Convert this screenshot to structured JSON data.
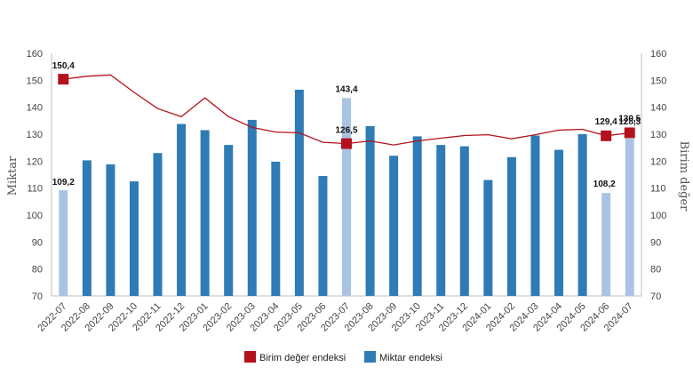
{
  "chart_data": {
    "type": "bar",
    "categories": [
      "2022-07",
      "2022-08",
      "2022-09",
      "2022-10",
      "2022-11",
      "2022-12",
      "2023-01",
      "2023-02",
      "2023-03",
      "2023-04",
      "2023-05",
      "2023-06",
      "2023-07",
      "2023-08",
      "2023-09",
      "2023-10",
      "2023-11",
      "2023-12",
      "2024-01",
      "2024-02",
      "2024-03",
      "2024-04",
      "2024-05",
      "2024-06",
      "2024-07"
    ],
    "series": [
      {
        "name": "Birim değer endeksi",
        "kind": "line",
        "axis": "right",
        "color": "#b3121c",
        "values": [
          150.4,
          151.5,
          152.0,
          145.5,
          139.5,
          136.5,
          143.5,
          136.5,
          132.5,
          130.8,
          130.5,
          127.0,
          126.5,
          127.5,
          126.0,
          127.5,
          128.5,
          129.5,
          129.8,
          128.3,
          129.8,
          131.5,
          131.8,
          129.4,
          130.5
        ]
      },
      {
        "name": "Miktar endeksi",
        "kind": "bar",
        "axis": "left",
        "color": "#2e7bb5",
        "highlight_color": "#a9c3e5",
        "highlight_indices": [
          0,
          12,
          23,
          24
        ],
        "values": [
          109.2,
          120.3,
          118.8,
          112.5,
          123.0,
          133.8,
          131.5,
          126.0,
          135.3,
          119.8,
          146.5,
          114.5,
          143.4,
          133.0,
          122.0,
          129.2,
          126.0,
          125.5,
          113.0,
          121.5,
          129.5,
          124.2,
          130.0,
          108.2,
          128.3
        ]
      }
    ],
    "line_markers": [
      {
        "index": 0,
        "value": 150.4,
        "label": "150,4"
      },
      {
        "index": 12,
        "value": 126.5,
        "label": "126,5"
      },
      {
        "index": 23,
        "value": 129.4,
        "label": "129,4"
      },
      {
        "index": 24,
        "value": 130.5,
        "label": "130,5"
      }
    ],
    "bar_labels": [
      {
        "index": 0,
        "value": 109.2,
        "label": "109,2"
      },
      {
        "index": 12,
        "value": 143.4,
        "label": "143,4"
      },
      {
        "index": 23,
        "value": 108.2,
        "label": "108,2"
      },
      {
        "index": 24,
        "value": 128.3,
        "label": "128,3"
      }
    ],
    "title": "",
    "xlabel": "",
    "ylabel": "Miktar",
    "ylabel_right": "Birim değer",
    "ylim": [
      70,
      160
    ],
    "ylim_right": [
      70,
      160
    ],
    "yticks": [
      "70",
      "80",
      "90",
      "100",
      "110",
      "120",
      "130",
      "140",
      "150",
      "160"
    ],
    "grid": false,
    "legend": {
      "position": "bottom",
      "items": [
        {
          "label": "Birim değer endeksi",
          "color": "#b3121c"
        },
        {
          "label": "Miktar endeksi",
          "color": "#2e7bb5"
        }
      ]
    }
  }
}
